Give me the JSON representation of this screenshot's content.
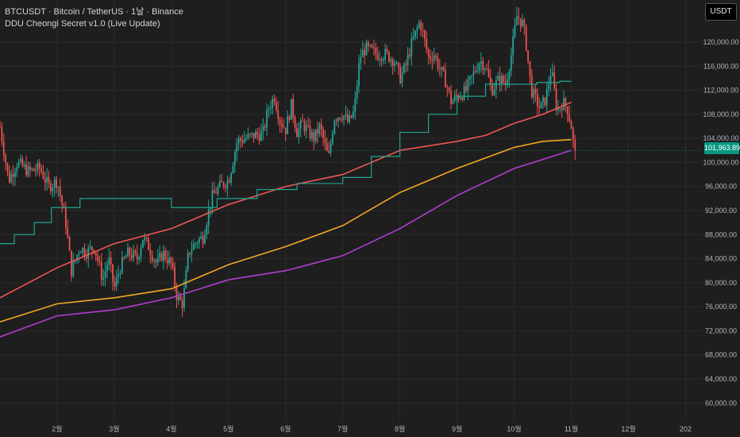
{
  "legend": {
    "symbol_line": "BTCUSDT · Bitcoin / TetherUS · 1날 · Binance",
    "indicator_line": "DDU Cheongi Secret v1.0 (Live Update)"
  },
  "currency_badge": "USDT",
  "last_price_label": "101,963.89",
  "colors": {
    "background": "#1e1e1e",
    "grid": "#2b2b2b",
    "up": "#26a69a",
    "down": "#ef5350",
    "red_ma": "#f05656",
    "orange_ma": "#f5a623",
    "purple_ma": "#b13ecf",
    "teal_step": "#1fa58e",
    "axis_text": "#b2b5be"
  },
  "chart_data": {
    "type": "line",
    "title": "",
    "xlabel": "",
    "ylabel": "",
    "ylim": [
      57000,
      127000
    ],
    "y_ticks": [
      "60,000.00",
      "64,000.00",
      "68,000.00",
      "72,000.00",
      "76,000.00",
      "80,000.00",
      "84,000.00",
      "88,000.00",
      "92,000.00",
      "96,000.00",
      "100,000.00",
      "104,000.00",
      "108,000.00",
      "112,000.00",
      "116,000.00",
      "120,000.00"
    ],
    "y_tick_values": [
      60000,
      64000,
      68000,
      72000,
      76000,
      80000,
      84000,
      88000,
      92000,
      96000,
      100000,
      104000,
      108000,
      112000,
      116000,
      120000
    ],
    "x_tick_labels": [
      "2월",
      "3월",
      "4월",
      "5월",
      "6월",
      "7월",
      "8월",
      "9월",
      "10월",
      "11월",
      "12월",
      "202"
    ],
    "x_range_months": [
      1.0,
      13.3
    ],
    "x_tick_positions": [
      2,
      3,
      4,
      5,
      6,
      7,
      8,
      9,
      10,
      11,
      12,
      13
    ],
    "last_price": 101963.89,
    "price_path": [
      [
        1.0,
        106000
      ],
      [
        1.15,
        97000
      ],
      [
        1.3,
        100000
      ],
      [
        1.5,
        98500
      ],
      [
        1.7,
        99000
      ],
      [
        1.85,
        96000
      ],
      [
        2.0,
        97000
      ],
      [
        2.15,
        90000
      ],
      [
        2.25,
        82000
      ],
      [
        2.4,
        86000
      ],
      [
        2.5,
        85000
      ],
      [
        2.65,
        86000
      ],
      [
        2.8,
        80500
      ],
      [
        2.9,
        84000
      ],
      [
        3.0,
        79000
      ],
      [
        3.1,
        82500
      ],
      [
        3.25,
        85000
      ],
      [
        3.4,
        84000
      ],
      [
        3.5,
        87500
      ],
      [
        3.6,
        86000
      ],
      [
        3.75,
        83000
      ],
      [
        3.85,
        85000
      ],
      [
        4.0,
        83000
      ],
      [
        4.1,
        77500
      ],
      [
        4.2,
        76500
      ],
      [
        4.3,
        85000
      ],
      [
        4.45,
        87000
      ],
      [
        4.55,
        87500
      ],
      [
        4.7,
        94000
      ],
      [
        4.8,
        95500
      ],
      [
        4.9,
        96500
      ],
      [
        5.0,
        97000
      ],
      [
        5.15,
        103500
      ],
      [
        5.3,
        104000
      ],
      [
        5.45,
        104500
      ],
      [
        5.6,
        104800
      ],
      [
        5.7,
        109000
      ],
      [
        5.8,
        111000
      ],
      [
        5.9,
        107000
      ],
      [
        6.0,
        105500
      ],
      [
        6.1,
        109500
      ],
      [
        6.2,
        105000
      ],
      [
        6.3,
        106500
      ],
      [
        6.4,
        105000
      ],
      [
        6.5,
        104000
      ],
      [
        6.6,
        106000
      ],
      [
        6.75,
        100500
      ],
      [
        6.85,
        107500
      ],
      [
        7.0,
        108000
      ],
      [
        7.1,
        106500
      ],
      [
        7.2,
        108500
      ],
      [
        7.3,
        117500
      ],
      [
        7.4,
        119000
      ],
      [
        7.5,
        118500
      ],
      [
        7.6,
        118000
      ],
      [
        7.75,
        118000
      ],
      [
        7.9,
        117000
      ],
      [
        8.0,
        114000
      ],
      [
        8.1,
        116000
      ],
      [
        8.2,
        119500
      ],
      [
        8.35,
        123500
      ],
      [
        8.5,
        117500
      ],
      [
        8.6,
        118000
      ],
      [
        8.7,
        115500
      ],
      [
        8.8,
        113500
      ],
      [
        8.9,
        110000
      ],
      [
        9.0,
        111000
      ],
      [
        9.15,
        111800
      ],
      [
        9.3,
        115000
      ],
      [
        9.4,
        117000
      ],
      [
        9.5,
        116000
      ],
      [
        9.6,
        112000
      ],
      [
        9.75,
        114000
      ],
      [
        9.85,
        113000
      ],
      [
        9.95,
        118000
      ],
      [
        10.05,
        124500
      ],
      [
        10.15,
        123000
      ],
      [
        10.2,
        120500
      ],
      [
        10.3,
        112000
      ],
      [
        10.45,
        109000
      ],
      [
        10.55,
        110500
      ],
      [
        10.65,
        115500
      ],
      [
        10.75,
        108500
      ],
      [
        10.85,
        110000
      ],
      [
        10.93,
        109000
      ],
      [
        11.0,
        106000
      ],
      [
        11.05,
        101963.89
      ]
    ],
    "series": [
      {
        "color": "red",
        "values": [
          [
            1.0,
            77500
          ],
          [
            2.0,
            82500
          ],
          [
            3.0,
            86500
          ],
          [
            4.0,
            89000
          ],
          [
            5.0,
            93000
          ],
          [
            6.0,
            96000
          ],
          [
            7.0,
            98000
          ],
          [
            8.0,
            102000
          ],
          [
            9.0,
            103500
          ],
          [
            9.5,
            104500
          ],
          [
            10.0,
            106500
          ],
          [
            10.5,
            108000
          ],
          [
            11.0,
            110000
          ]
        ]
      },
      {
        "color": "orange",
        "values": [
          [
            1.0,
            73500
          ],
          [
            2.0,
            76500
          ],
          [
            3.0,
            77500
          ],
          [
            4.0,
            79000
          ],
          [
            5.0,
            83000
          ],
          [
            6.0,
            86000
          ],
          [
            7.0,
            89500
          ],
          [
            8.0,
            95000
          ],
          [
            9.0,
            99000
          ],
          [
            10.0,
            102500
          ],
          [
            10.5,
            103500
          ],
          [
            11.0,
            103800
          ]
        ]
      },
      {
        "color": "purple",
        "values": [
          [
            1.0,
            71000
          ],
          [
            2.0,
            74500
          ],
          [
            3.0,
            75500
          ],
          [
            4.0,
            77500
          ],
          [
            5.0,
            80500
          ],
          [
            6.0,
            82000
          ],
          [
            7.0,
            84500
          ],
          [
            8.0,
            89000
          ],
          [
            9.0,
            94500
          ],
          [
            10.0,
            99000
          ],
          [
            10.5,
            100500
          ],
          [
            11.0,
            102000
          ]
        ]
      },
      {
        "color": "teal",
        "values": [
          [
            1.0,
            86500
          ],
          [
            1.25,
            88000
          ],
          [
            1.6,
            90000
          ],
          [
            1.9,
            92500
          ],
          [
            2.4,
            94000
          ],
          [
            3.5,
            94000
          ],
          [
            4.0,
            92500
          ],
          [
            4.8,
            94000
          ],
          [
            5.5,
            95500
          ],
          [
            6.2,
            96500
          ],
          [
            7.0,
            97500
          ],
          [
            7.5,
            101000
          ],
          [
            8.0,
            105000
          ],
          [
            8.5,
            108000
          ],
          [
            9.0,
            111000
          ],
          [
            9.5,
            113000
          ],
          [
            10.0,
            113000
          ],
          [
            10.4,
            113300
          ],
          [
            10.8,
            113500
          ],
          [
            11.0,
            113500
          ]
        ]
      }
    ]
  }
}
